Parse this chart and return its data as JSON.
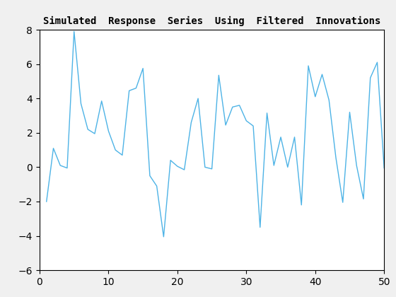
{
  "title": "Simulated  Response  Series  Using  Filtered  Innovations",
  "xlim": [
    0,
    50
  ],
  "ylim": [
    -6,
    8
  ],
  "xticks": [
    0,
    10,
    20,
    30,
    40,
    50
  ],
  "yticks": [
    -6,
    -4,
    -2,
    0,
    2,
    4,
    6,
    8
  ],
  "line_color": "#4db3e6",
  "line_width": 1.0,
  "x": [
    1,
    2,
    3,
    4,
    5,
    6,
    7,
    8,
    9,
    10,
    11,
    12,
    13,
    14,
    15,
    16,
    17,
    18,
    19,
    20,
    21,
    22,
    23,
    24,
    25,
    26,
    27,
    28,
    29,
    30,
    31,
    32,
    33,
    34,
    35,
    36,
    37,
    38,
    39,
    40,
    41,
    42,
    43,
    44,
    45,
    46,
    47,
    48,
    49,
    50
  ],
  "y": [
    -2.0,
    1.1,
    0.1,
    -0.05,
    7.9,
    3.7,
    2.2,
    1.95,
    3.85,
    2.1,
    1.0,
    0.7,
    4.45,
    4.6,
    5.75,
    -0.5,
    -1.1,
    -4.05,
    0.4,
    0.05,
    -0.15,
    2.6,
    4.0,
    0.0,
    -0.1,
    5.35,
    2.45,
    3.5,
    3.6,
    2.7,
    2.4,
    -3.5,
    3.15,
    0.1,
    1.75,
    0.0,
    1.75,
    -2.2,
    5.9,
    4.1,
    5.4,
    3.9,
    0.55,
    -2.05,
    3.2,
    0.1,
    -1.85,
    5.2,
    6.1,
    -0.05
  ],
  "title_fontsize": 10,
  "tick_fontsize": 10,
  "fig_facecolor": "#f0f0f0",
  "axes_facecolor": "#ffffff",
  "spine_color": "#000000"
}
